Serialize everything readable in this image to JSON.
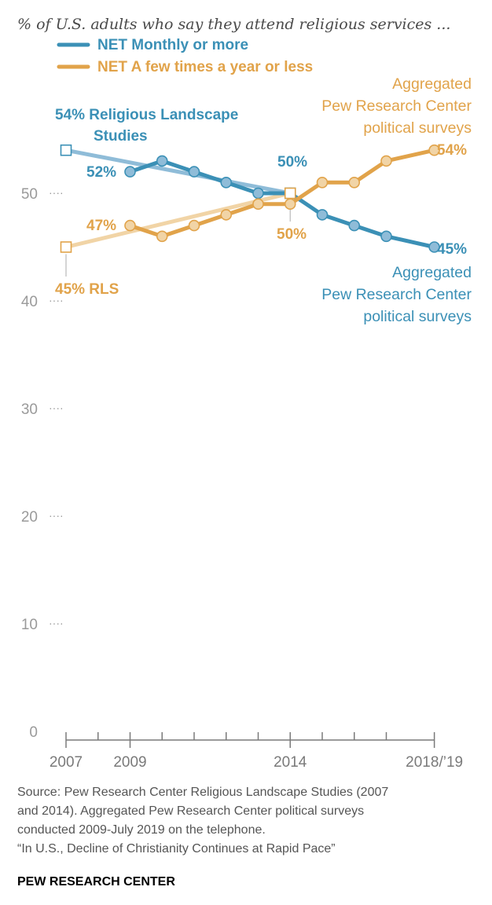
{
  "colors": {
    "blue": "#3b90b6",
    "blue_light": "#8fbcd8",
    "orange": "#e1a34a",
    "orange_light": "#f1d4a6",
    "axis": "#7a7a7a"
  },
  "title": "% of U.S. adults who say they attend religious services ...",
  "legend": [
    {
      "label": "NET Monthly or more",
      "color": "#3b90b6"
    },
    {
      "label": "NET A few times a year or less",
      "color": "#e1a34a"
    }
  ],
  "chart_data": {
    "type": "line",
    "ylim": [
      0,
      55
    ],
    "y_ticks": [
      0,
      10,
      20,
      30,
      40,
      50
    ],
    "y_tick_labels": [
      "0",
      "10",
      "20",
      "30",
      "40",
      "50"
    ],
    "x_tick_labels": [
      {
        "x": 2007,
        "label": "2007"
      },
      {
        "x": 2009,
        "label": "2009"
      },
      {
        "x": 2014,
        "label": "2014"
      },
      {
        "x": 2018.5,
        "label": "2018/’19"
      }
    ],
    "x_minor_ticks": [
      2007,
      2008,
      2009,
      2010,
      2011,
      2012,
      2013,
      2014,
      2015,
      2016,
      2017,
      2018.5
    ],
    "series": [
      {
        "name": "NET Monthly or more",
        "rls": [
          {
            "x": 2007,
            "y": 54
          },
          {
            "x": 2014,
            "y": 50
          }
        ],
        "surveys": [
          {
            "x": 2009,
            "y": 52
          },
          {
            "x": 2010,
            "y": 53
          },
          {
            "x": 2011,
            "y": 52
          },
          {
            "x": 2012,
            "y": 51
          },
          {
            "x": 2013,
            "y": 50
          },
          {
            "x": 2014,
            "y": 50
          },
          {
            "x": 2015,
            "y": 48
          },
          {
            "x": 2016,
            "y": 47
          },
          {
            "x": 2017,
            "y": 46
          },
          {
            "x": 2018.5,
            "y": 45
          }
        ]
      },
      {
        "name": "NET A few times a year or less",
        "rls": [
          {
            "x": 2007,
            "y": 45
          },
          {
            "x": 2014,
            "y": 50
          }
        ],
        "surveys": [
          {
            "x": 2009,
            "y": 47
          },
          {
            "x": 2010,
            "y": 46
          },
          {
            "x": 2011,
            "y": 47
          },
          {
            "x": 2012,
            "y": 48
          },
          {
            "x": 2013,
            "y": 49
          },
          {
            "x": 2014,
            "y": 49
          },
          {
            "x": 2015,
            "y": 51
          },
          {
            "x": 2016,
            "y": 51
          },
          {
            "x": 2017,
            "y": 53
          },
          {
            "x": 2018.5,
            "y": 54
          }
        ]
      }
    ],
    "data_labels": {
      "blue_2007": "54% Religious Landscape",
      "blue_2007_line2": "Studies",
      "blue_2009": "52%",
      "blue_2014": "50%",
      "blue_end": "45%",
      "orange_2007": "45% RLS",
      "orange_2009": "47%",
      "orange_2014": "50%",
      "orange_end": "54%"
    },
    "annotations": {
      "orange_surveys": [
        "Aggregated",
        "Pew Research Center",
        "political surveys"
      ],
      "blue_surveys": [
        "Aggregated",
        "Pew Research Center",
        "political surveys"
      ]
    }
  },
  "source": [
    "Source: Pew Research Center Religious Landscape Studies (2007",
    "and 2014). Aggregated Pew Research Center political surveys",
    "conducted 2009-July 2019 on the telephone.",
    "“In U.S., Decline of Christianity Continues at Rapid Pace”"
  ],
  "brand": "PEW RESEARCH CENTER"
}
